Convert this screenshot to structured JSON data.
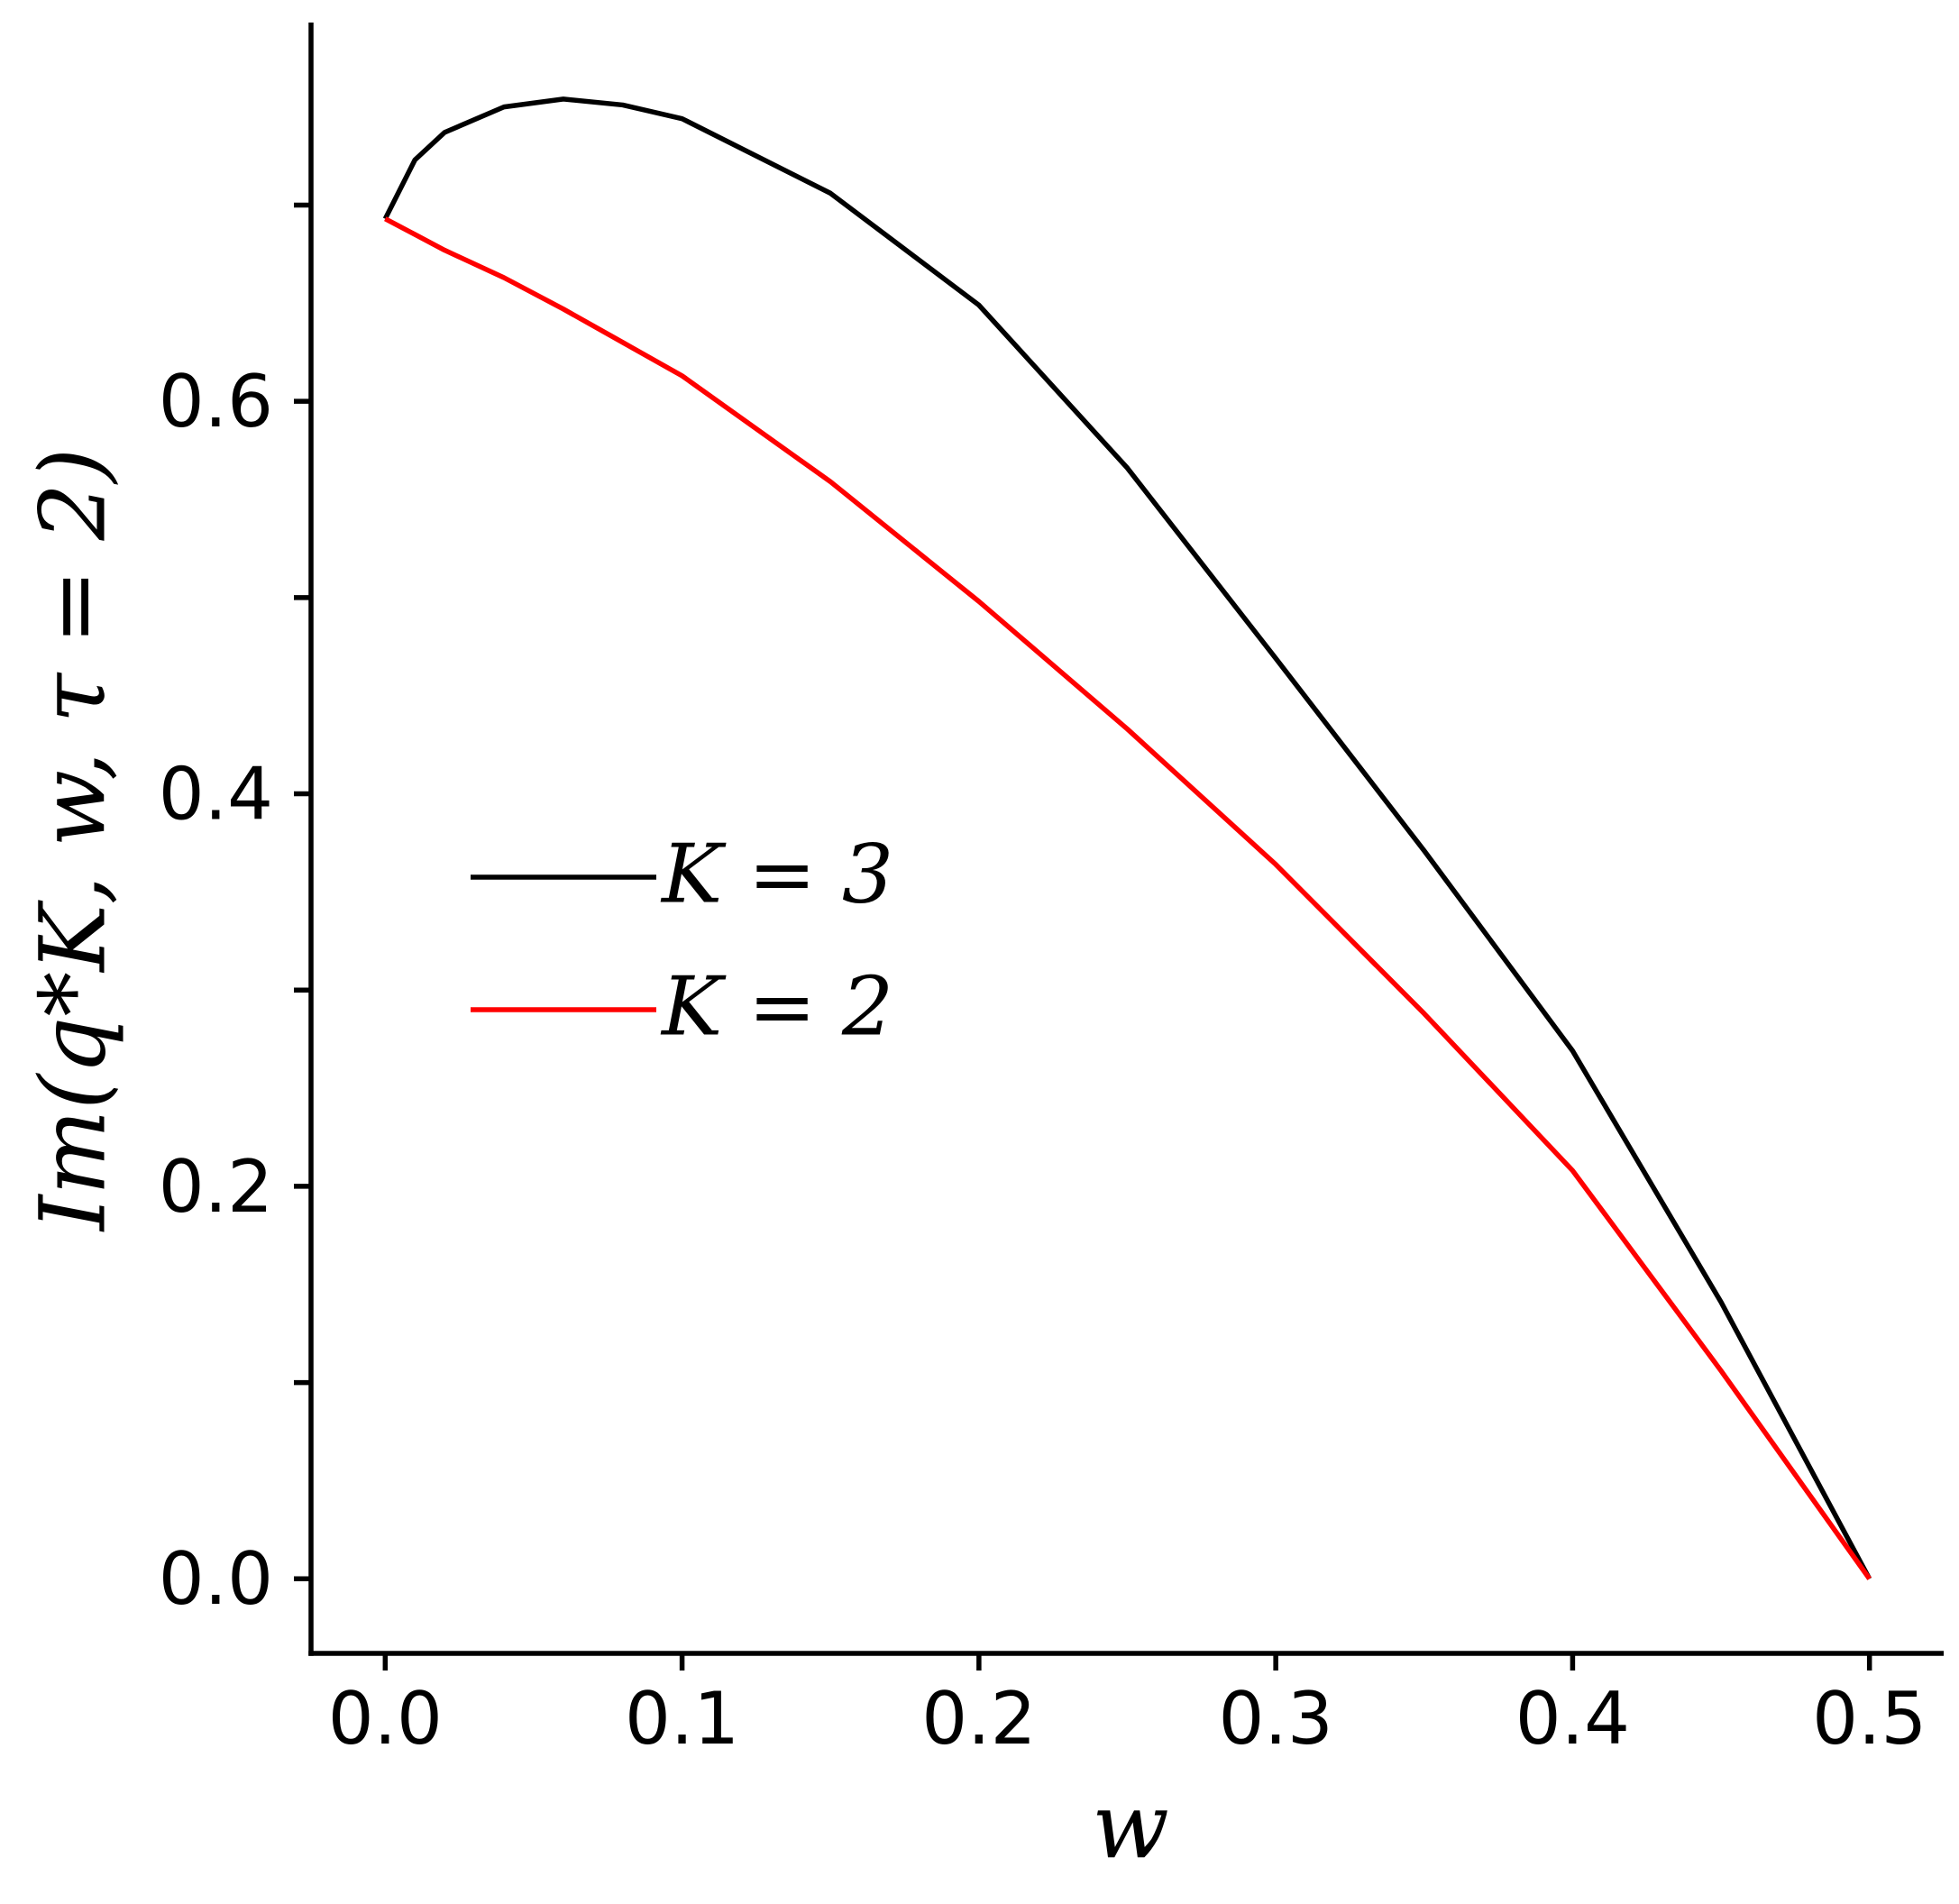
{
  "chart_data": {
    "type": "line",
    "xlabel": "w",
    "ylabel": "Im(q*K, w, τ = 2)",
    "x": [
      0,
      0.01,
      0.02,
      0.04,
      0.06,
      0.08,
      0.1,
      0.15,
      0.2,
      0.25,
      0.3,
      0.35,
      0.4,
      0.45,
      0.5
    ],
    "series": [
      {
        "name": "K = 3",
        "color": "#000000",
        "values": [
          0.693,
          0.723,
          0.737,
          0.75,
          0.754,
          0.751,
          0.744,
          0.706,
          0.649,
          0.566,
          0.469,
          0.371,
          0.269,
          0.141,
          0
        ]
      },
      {
        "name": "K = 2",
        "color": "#ff0000",
        "values": [
          0.693,
          0.685,
          0.677,
          0.663,
          0.647,
          0.63,
          0.613,
          0.559,
          0.498,
          0.433,
          0.364,
          0.288,
          0.208,
          0.106,
          0
        ]
      }
    ],
    "xlim": [
      -0.025,
      0.525
    ],
    "ylim": [
      -0.038,
      0.793
    ],
    "xticks": [
      {
        "value": 0,
        "label": "0.0"
      },
      0.1,
      0.2,
      0.3,
      0.4,
      0.5
    ],
    "yticks": [
      {
        "value": 0,
        "label": "0.0"
      },
      0.2,
      0.4,
      0.6
    ],
    "yminor_ticks": [
      0.1,
      0.3,
      0.5,
      0.7
    ],
    "grid": false,
    "legend": "center left"
  }
}
